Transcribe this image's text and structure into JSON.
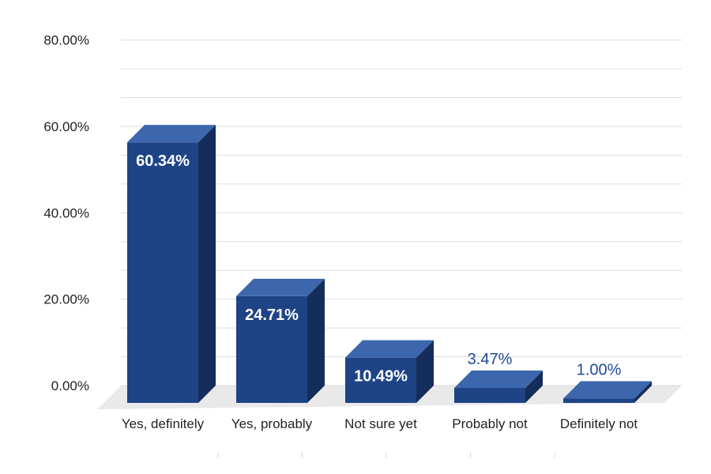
{
  "chart_data": {
    "type": "bar",
    "style": "3d-bar",
    "categories": [
      "Yes, definitely",
      "Yes, probably",
      "Not sure yet",
      "Probably not",
      "Definitely not"
    ],
    "values": [
      60.34,
      24.71,
      10.49,
      3.47,
      1.0
    ],
    "data_labels": [
      "60.34%",
      "24.71%",
      "10.49%",
      "3.47%",
      "1.00%"
    ],
    "title": "",
    "xlabel": "",
    "ylabel": "",
    "ylim": [
      0,
      80
    ],
    "yticks": [
      0,
      20,
      40,
      60,
      80
    ],
    "ytick_labels": [
      "0.00%",
      "20.00%",
      "40.00%",
      "60.00%",
      "80.00%"
    ],
    "grid": true,
    "legend": "none",
    "colors": {
      "bar_front": "#1e4486",
      "bar_top": "#3d67ad",
      "bar_side": "#142d5a",
      "floor": "#e9e9e9",
      "grid": "#dcdcdc",
      "outside_label": "#1f4a99"
    }
  }
}
